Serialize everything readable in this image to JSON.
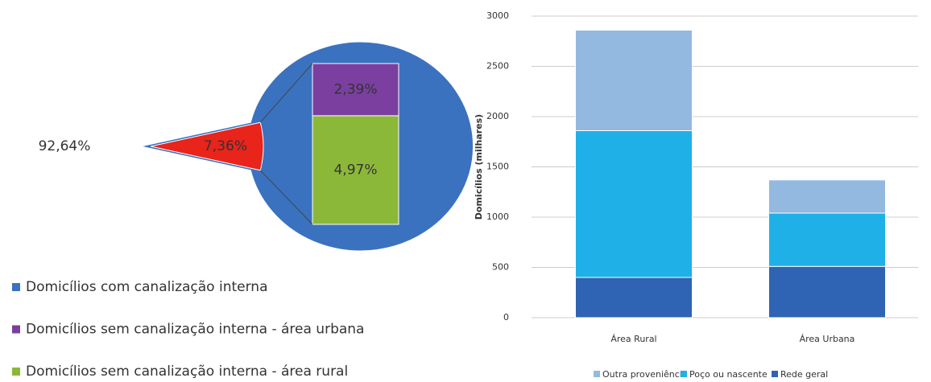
{
  "chart_data": [
    {
      "type": "pie",
      "values": [
        92.64,
        7.36
      ],
      "value_labels": [
        "92,64%",
        "7,36%"
      ],
      "colors": [
        "#3a72c0",
        "#e8241b"
      ],
      "breakdown": {
        "values": [
          2.39,
          4.97
        ],
        "value_labels": [
          "2,39%",
          "4,97%"
        ],
        "colors": [
          "#7b3fa0",
          "#8cb83a"
        ]
      },
      "legend": [
        {
          "name": "Domicílios com canalização interna",
          "color": "#3a72c0"
        },
        {
          "name": "Domicílios sem canalização interna - área urbana",
          "color": "#7b3fa0"
        },
        {
          "name": "Domicílios sem canalização interna - área rural",
          "color": "#8cb83a"
        }
      ]
    },
    {
      "type": "stacked_bar",
      "ylabel": "Domicílios (milhares)",
      "categories": [
        "Área Rural",
        "Área Urbana"
      ],
      "series": [
        {
          "name": "Outra proveniência",
          "color": "#93b9e0",
          "values": [
            1000,
            330
          ]
        },
        {
          "name": "Poço ou nascente",
          "color": "#1fb0e8",
          "values": [
            1460,
            530
          ]
        },
        {
          "name": "Rede geral",
          "color": "#2e64b3",
          "values": [
            400,
            510
          ]
        }
      ],
      "ylim": [
        0,
        3000
      ],
      "yticks": [
        0,
        500,
        1000,
        1500,
        2000,
        2500,
        3000
      ],
      "grid": true
    }
  ]
}
